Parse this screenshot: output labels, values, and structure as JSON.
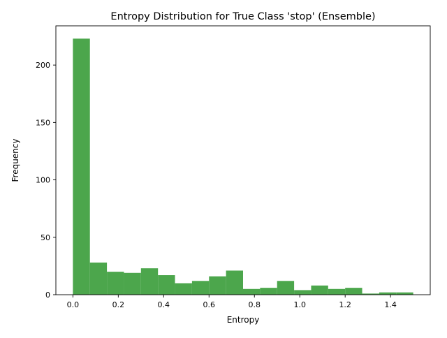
{
  "chart_data": {
    "type": "bar",
    "title": "Entropy Distribution for True Class 'stop' (Ensemble)",
    "xlabel": "Entropy",
    "ylabel": "Frequency",
    "xlim": [
      -0.075,
      1.575
    ],
    "ylim": [
      0,
      234.15
    ],
    "xticks": [
      0.0,
      0.2,
      0.4,
      0.6,
      0.8,
      1.0,
      1.2,
      1.4
    ],
    "xtick_labels": [
      "0.0",
      "0.2",
      "0.4",
      "0.6",
      "0.8",
      "1.0",
      "1.2",
      "1.4"
    ],
    "yticks": [
      0,
      50,
      100,
      150,
      200
    ],
    "ytick_labels": [
      "0",
      "50",
      "100",
      "150",
      "200"
    ],
    "bin_edges": [
      0.0,
      0.075,
      0.15,
      0.225,
      0.3,
      0.375,
      0.45,
      0.525,
      0.6,
      0.675,
      0.75,
      0.825,
      0.9,
      0.975,
      1.05,
      1.125,
      1.2,
      1.275,
      1.35,
      1.425,
      1.5
    ],
    "values": [
      223,
      28,
      20,
      19,
      23,
      17,
      10,
      12,
      16,
      21,
      5,
      6,
      12,
      4,
      8,
      5,
      6,
      1,
      2,
      2
    ],
    "color": "#4ca64c",
    "grid": false,
    "legend": "none"
  }
}
